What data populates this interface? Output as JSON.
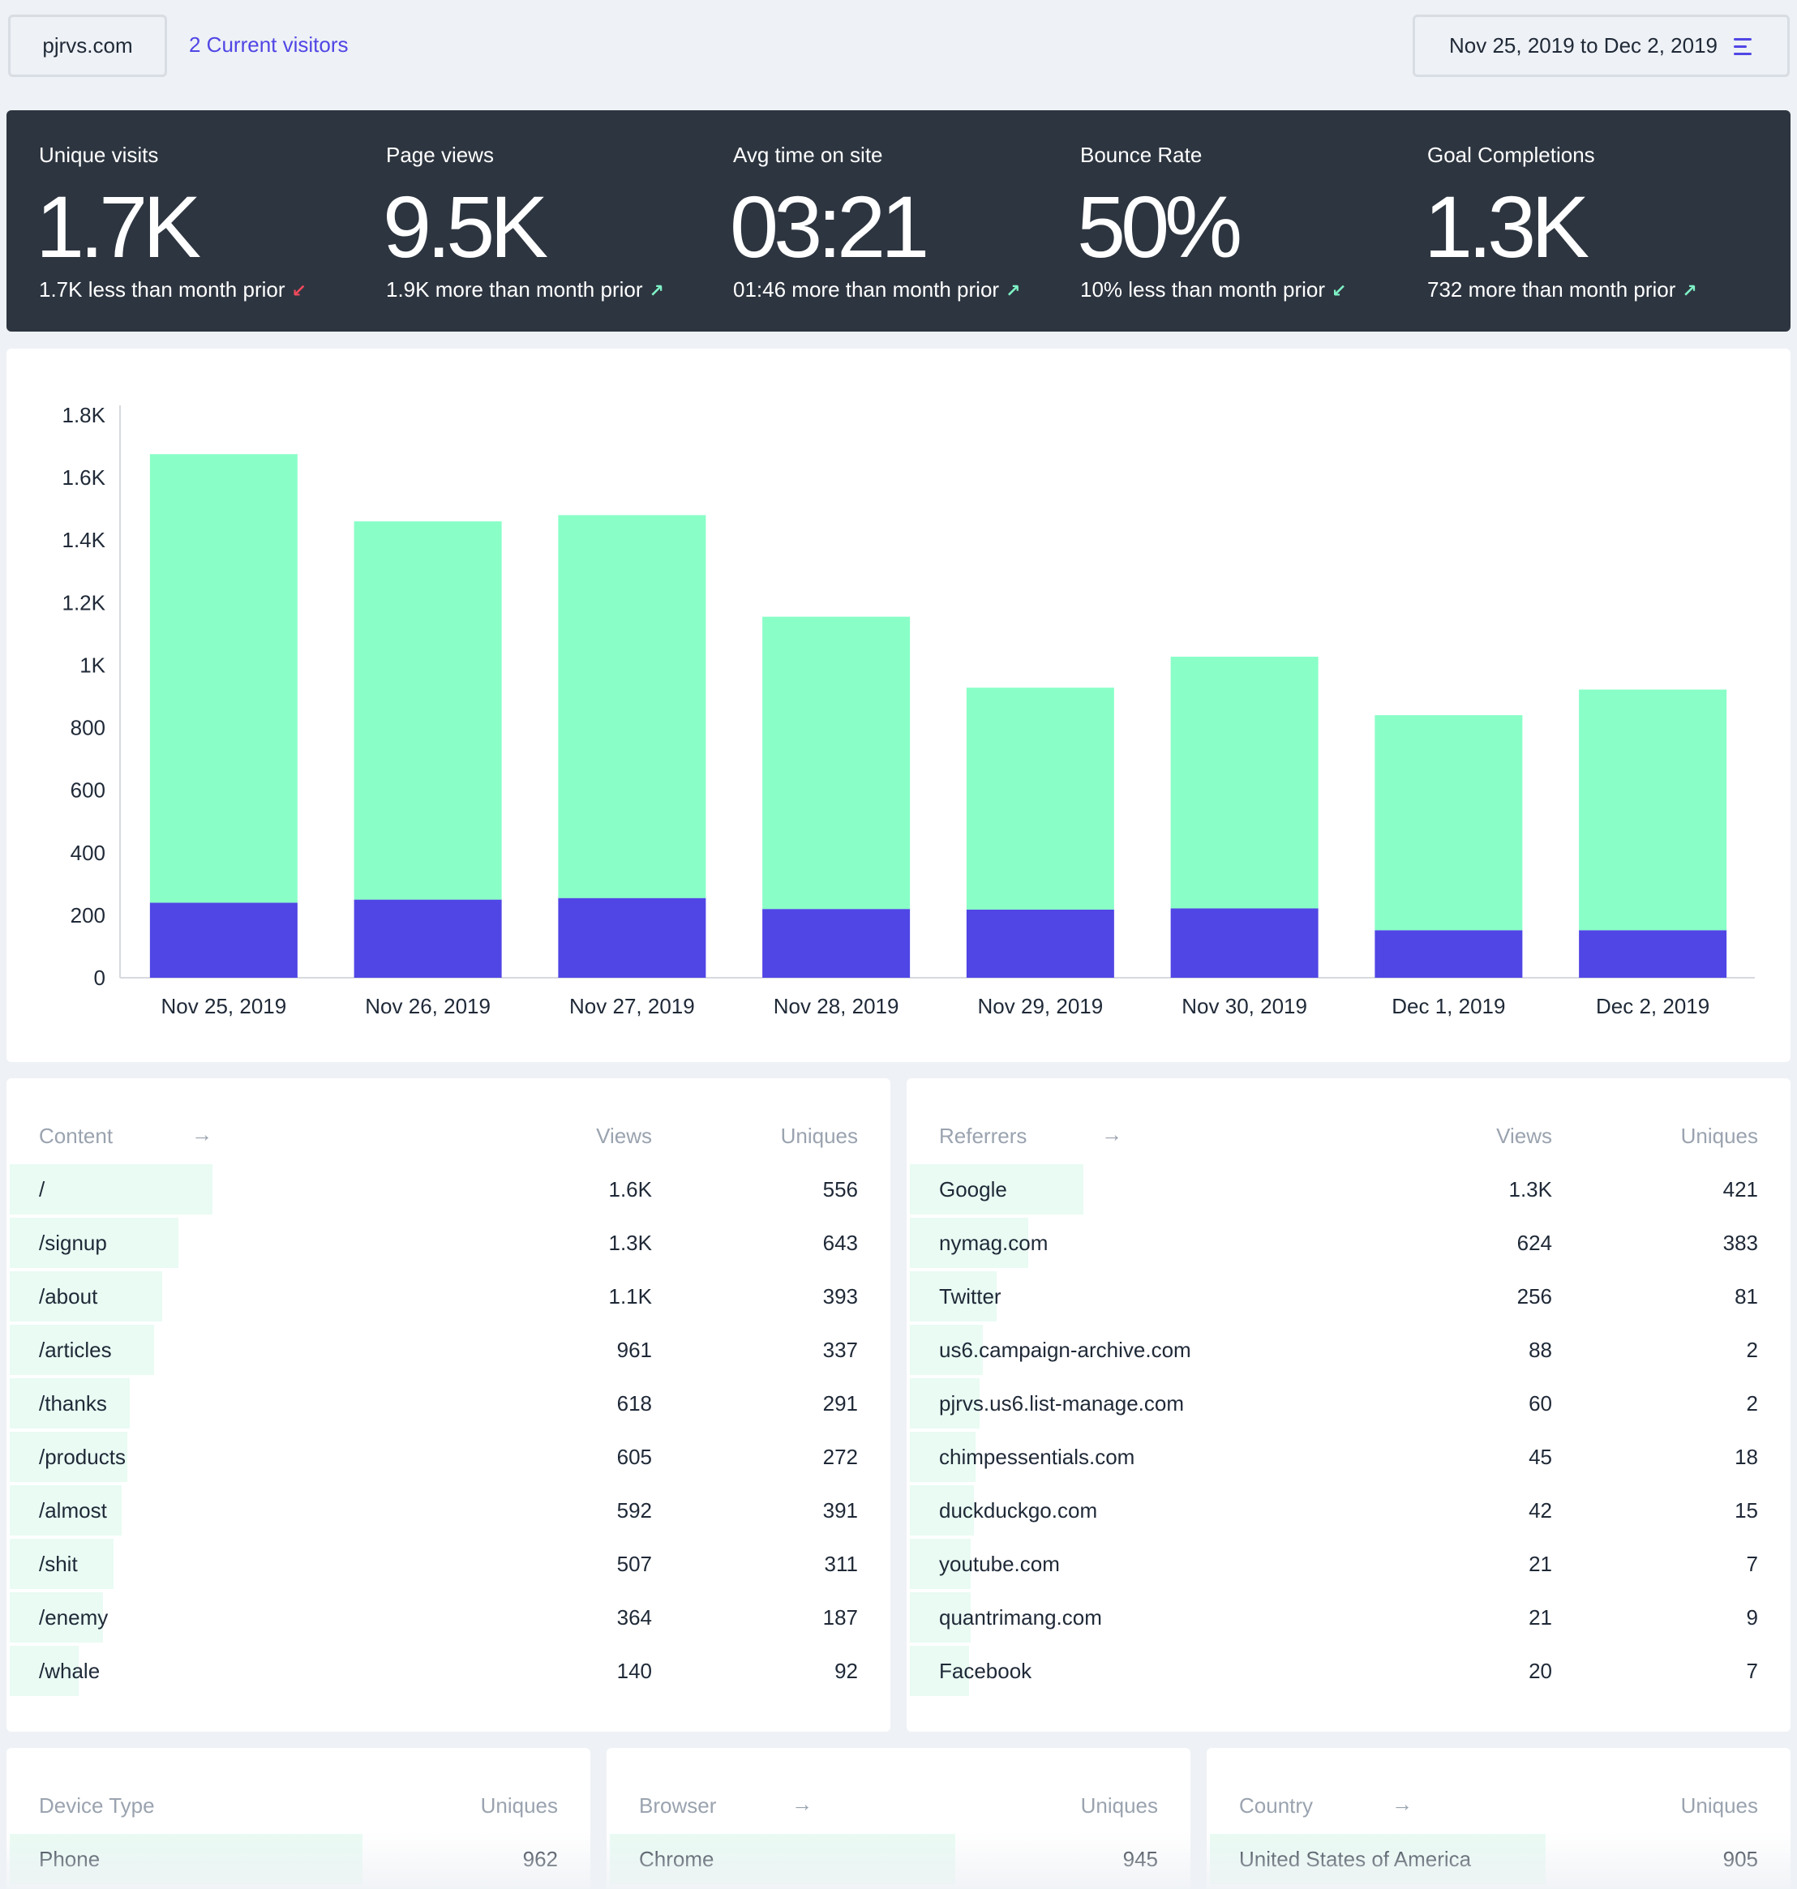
{
  "header": {
    "site": "pjrvs.com",
    "visitors": "2 Current visitors",
    "date_range": "Nov 25, 2019 to Dec 2, 2019",
    "menu_icon": "menu-lines-icon"
  },
  "stats": [
    {
      "label": "Unique visits",
      "value": "1.7K",
      "change": "1.7K less than month prior",
      "direction": "down"
    },
    {
      "label": "Page views",
      "value": "9.5K",
      "change": "1.9K more than month prior",
      "direction": "up"
    },
    {
      "label": "Avg time on site",
      "value": "03:21",
      "change": "01:46 more than month prior",
      "direction": "up"
    },
    {
      "label": "Bounce Rate",
      "value": "50%",
      "change": "10% less than month prior",
      "direction": "down"
    },
    {
      "label": "Goal Completions",
      "value": "1.3K",
      "change": "732 more than month prior",
      "direction": "up"
    }
  ],
  "chart_data": {
    "type": "bar",
    "stacked": true,
    "categories": [
      "Nov 25, 2019",
      "Nov 26, 2019",
      "Nov 27, 2019",
      "Nov 28, 2019",
      "Nov 29, 2019",
      "Nov 30, 2019",
      "Dec 1, 2019",
      "Dec 2, 2019"
    ],
    "series": [
      {
        "values": [
          240,
          250,
          255,
          220,
          218,
          222,
          152,
          152
        ],
        "color": "#5046e5"
      },
      {
        "values": [
          1435,
          1210,
          1225,
          935,
          710,
          805,
          688,
          770
        ],
        "color": "#89ffc7"
      }
    ],
    "yticks": [
      "0",
      "200",
      "400",
      "600",
      "800",
      "1K",
      "1.2K",
      "1.4K",
      "1.6K",
      "1.8K"
    ],
    "ylim": [
      0,
      1800
    ],
    "grid": false
  },
  "content": {
    "title": "Content",
    "col_views": "Views",
    "col_uniques": "Uniques",
    "rows": [
      {
        "label": "/",
        "views": "1.6K",
        "uniques": "556",
        "share": 1.0
      },
      {
        "label": "/signup",
        "views": "1.3K",
        "uniques": "643",
        "share": 0.83
      },
      {
        "label": "/about",
        "views": "1.1K",
        "uniques": "393",
        "share": 0.75
      },
      {
        "label": "/articles",
        "views": "961",
        "uniques": "337",
        "share": 0.71
      },
      {
        "label": "/thanks",
        "views": "618",
        "uniques": "291",
        "share": 0.59
      },
      {
        "label": "/products",
        "views": "605",
        "uniques": "272",
        "share": 0.58
      },
      {
        "label": "/almost",
        "views": "592",
        "uniques": "391",
        "share": 0.55
      },
      {
        "label": "/shit",
        "views": "507",
        "uniques": "311",
        "share": 0.51
      },
      {
        "label": "/enemy",
        "views": "364",
        "uniques": "187",
        "share": 0.46
      },
      {
        "label": "/whale",
        "views": "140",
        "uniques": "92",
        "share": 0.34
      }
    ]
  },
  "referrers": {
    "title": "Referrers",
    "col_views": "Views",
    "col_uniques": "Uniques",
    "rows": [
      {
        "label": "Google",
        "views": "1.3K",
        "uniques": "421",
        "share": 1.0
      },
      {
        "label": "nymag.com",
        "views": "624",
        "uniques": "383",
        "share": 0.68
      },
      {
        "label": "Twitter",
        "views": "256",
        "uniques": "81",
        "share": 0.5
      },
      {
        "label": "us6.campaign-archive.com",
        "views": "88",
        "uniques": "2",
        "share": 0.42
      },
      {
        "label": "pjrvs.us6.list-manage.com",
        "views": "60",
        "uniques": "2",
        "share": 0.4
      },
      {
        "label": "chimpessentials.com",
        "views": "45",
        "uniques": "18",
        "share": 0.38
      },
      {
        "label": "duckduckgo.com",
        "views": "42",
        "uniques": "15",
        "share": 0.37
      },
      {
        "label": "youtube.com",
        "views": "21",
        "uniques": "7",
        "share": 0.35
      },
      {
        "label": "quantrimang.com",
        "views": "21",
        "uniques": "9",
        "share": 0.35
      },
      {
        "label": "Facebook",
        "views": "20",
        "uniques": "7",
        "share": 0.34
      }
    ]
  },
  "devices": {
    "title": "Device Type",
    "col_uniques": "Uniques",
    "rows": [
      {
        "label": "Phone",
        "uniques": "962",
        "share": 0.41
      }
    ]
  },
  "browsers": {
    "title": "Browser",
    "col_uniques": "Uniques",
    "rows": [
      {
        "label": "Chrome",
        "uniques": "945",
        "share": 0.41
      }
    ]
  },
  "countries": {
    "title": "Country",
    "col_uniques": "Uniques",
    "rows": [
      {
        "label": "United States of America",
        "uniques": "905",
        "share": 0.41
      }
    ]
  },
  "colors": {
    "accent": "#5046e5",
    "mint": "#89ffc7",
    "panel_dark": "#2d3540",
    "down": "#f04a5c",
    "up": "#7ff2c6"
  }
}
